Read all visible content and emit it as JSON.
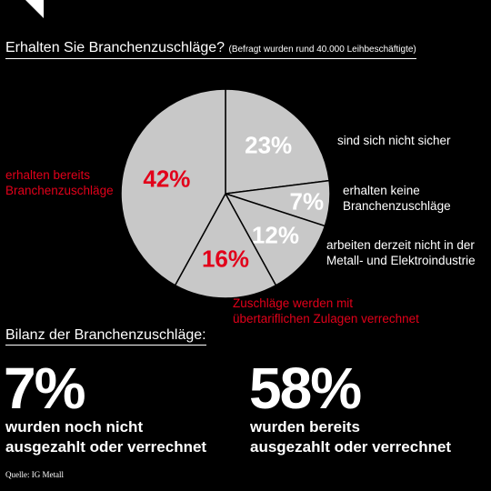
{
  "title": "Erhalten Sie Branchenzuschläge?",
  "subtitle": "(Befragt wurden rund 40.000 Leihbeschäftigte)",
  "colors": {
    "slice": "#c8c8c8",
    "slice_border": "#000000",
    "highlight": "#e2001a",
    "text": "#ffffff"
  },
  "chart_data": {
    "type": "pie",
    "title": "Erhalten Sie Branchenzuschläge?",
    "slices": [
      {
        "label": "sind sich nicht sicher",
        "value": 23,
        "display": "23%",
        "highlight": false
      },
      {
        "label": "erhalten keine Branchenzuschläge",
        "value": 7,
        "display": "7%",
        "highlight": false
      },
      {
        "label": "arbeiten derzeit nicht in der Metall- und Elektroindustrie",
        "value": 12,
        "display": "12%",
        "highlight": false
      },
      {
        "label": "Zuschläge werden mit übertariflichen Zulagen verrechnet",
        "value": 16,
        "display": "16%",
        "highlight": true
      },
      {
        "label": "erhalten bereits Branchenzuschläge",
        "value": 42,
        "display": "42%",
        "highlight": true
      }
    ]
  },
  "labels": {
    "unsure": [
      "sind sich nicht sicher"
    ],
    "none": [
      "erhalten keine",
      "Branchenzuschläge"
    ],
    "notmetal": [
      "arbeiten derzeit nicht in der",
      "Metall- und Elektroindustrie"
    ],
    "offset": [
      "Zuschläge werden mit",
      "übertariflichen Zulagen verrechnet"
    ],
    "received": [
      "erhalten bereits",
      "Branchenzuschläge"
    ]
  },
  "bilanz": {
    "title": "Bilanz der Branchenzuschläge:",
    "left": {
      "value": "7%",
      "line1": "wurden noch nicht",
      "line2": "ausgezahlt oder verrechnet"
    },
    "right": {
      "value": "58%",
      "line1": "wurden bereits",
      "line2": "ausgezahlt oder verrechnet"
    }
  },
  "source": "Quelle: IG Metall"
}
